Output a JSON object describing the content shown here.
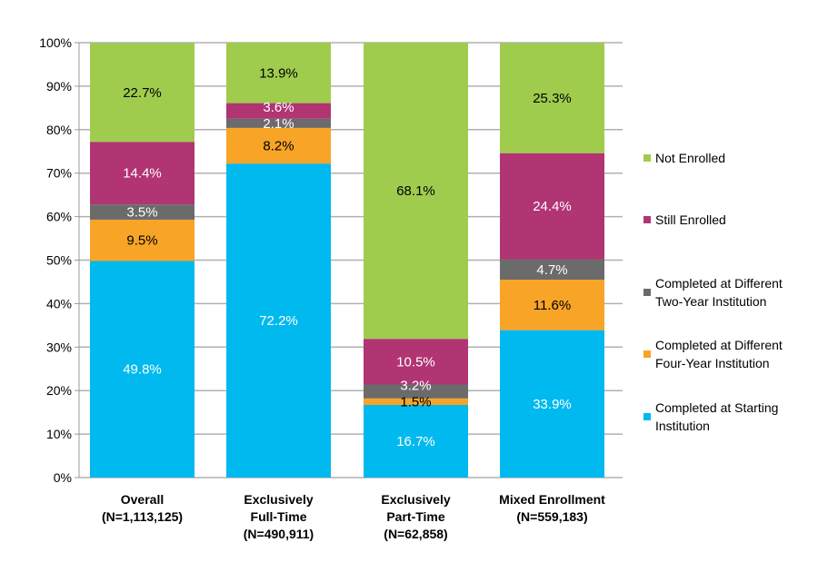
{
  "chart_data": {
    "type": "bar",
    "stacked": true,
    "categories": [
      [
        "Overall",
        "(N=1,113,125)"
      ],
      [
        "Exclusively",
        "Full-Time",
        "(N=490,911)"
      ],
      [
        "Exclusively",
        "Part-Time",
        "(N=62,858)"
      ],
      [
        "Mixed Enrollment",
        "(N=559,183)"
      ]
    ],
    "series": [
      {
        "name": [
          "Completed at Starting",
          "Institution"
        ],
        "color": "#00b9ee",
        "label_color": "#ffffff",
        "values": [
          49.8,
          72.2,
          16.7,
          33.9
        ]
      },
      {
        "name": [
          "Completed at Different",
          "Four-Year Institution"
        ],
        "color": "#f8a427",
        "label_color": "#000000",
        "values": [
          9.5,
          8.2,
          1.5,
          11.6
        ]
      },
      {
        "name": [
          "Completed at Different",
          "Two-Year Institution"
        ],
        "color": "#6b6b6b",
        "label_color": "#ffffff",
        "values": [
          3.5,
          2.1,
          3.2,
          4.7
        ]
      },
      {
        "name": [
          "Still Enrolled"
        ],
        "color": "#b13473",
        "label_color": "#ffffff",
        "values": [
          14.4,
          3.6,
          10.5,
          24.4
        ]
      },
      {
        "name": [
          "Not Enrolled"
        ],
        "color": "#a0cc4e",
        "label_color": "#000000",
        "values": [
          22.7,
          13.9,
          68.1,
          25.3
        ]
      }
    ],
    "yticks": [
      "0%",
      "10%",
      "20%",
      "30%",
      "40%",
      "50%",
      "60%",
      "70%",
      "80%",
      "90%",
      "100%"
    ],
    "ylim": [
      0,
      100
    ],
    "grid": true,
    "legend": "right"
  }
}
